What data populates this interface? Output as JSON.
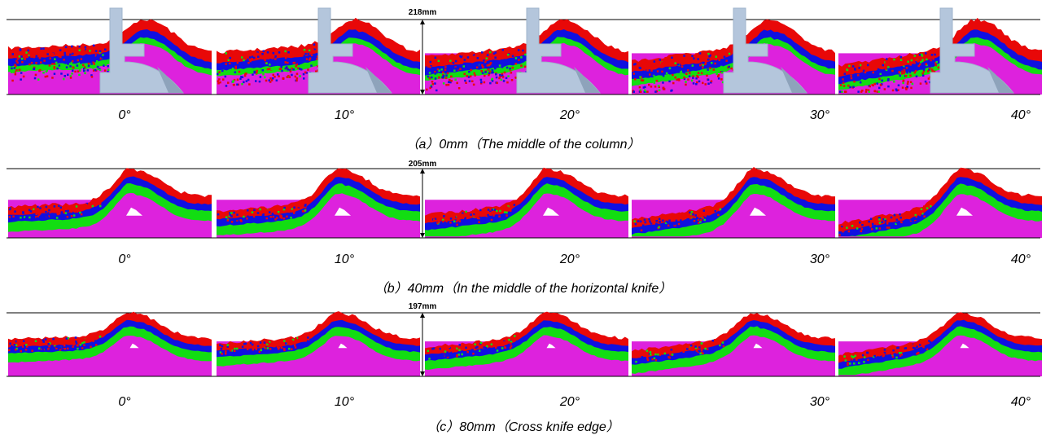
{
  "colors": {
    "layer_top": "#e80808",
    "layer_2": "#1010e0",
    "layer_3": "#12dd12",
    "layer_bottom": "#dd22dd",
    "tool": "#b4c6dc"
  },
  "rows": [
    {
      "id": "a",
      "dimension": "218mm",
      "angles": [
        "0°",
        "10°",
        "20°",
        "30°",
        "40°"
      ],
      "caption": "（a）0mm（The middle of the column）",
      "shows_tool": true
    },
    {
      "id": "b",
      "dimension": "205mm",
      "angles": [
        "0°",
        "10°",
        "20°",
        "30°",
        "40°"
      ],
      "caption": "（b）40mm（In the middle of the horizontal knife）",
      "shows_tool": false
    },
    {
      "id": "c",
      "dimension": "197mm",
      "angles": [
        "0°",
        "10°",
        "20°",
        "30°",
        "40°"
      ],
      "caption": "（c）80mm（Cross knife edge）",
      "shows_tool": false
    }
  ]
}
